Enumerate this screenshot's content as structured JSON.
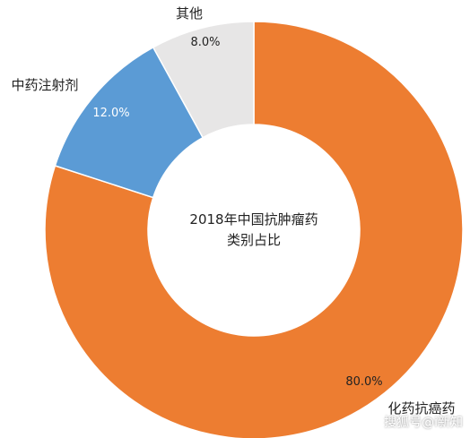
{
  "chart_data": {
    "type": "pie",
    "title_lines": [
      "2018年中国抗肿瘤药",
      "类别占比"
    ],
    "series": [
      {
        "name": "化药抗癌药",
        "value": 80.0,
        "label": "80.0%",
        "color": "#ED7D31"
      },
      {
        "name": "中药注射剂",
        "value": 12.0,
        "label": "12.0%",
        "color": "#5B9BD5"
      },
      {
        "name": "其他",
        "value": 8.0,
        "label": "8.0%",
        "color": "#E7E6E6"
      }
    ]
  },
  "watermark": "搜狐号@i新知"
}
